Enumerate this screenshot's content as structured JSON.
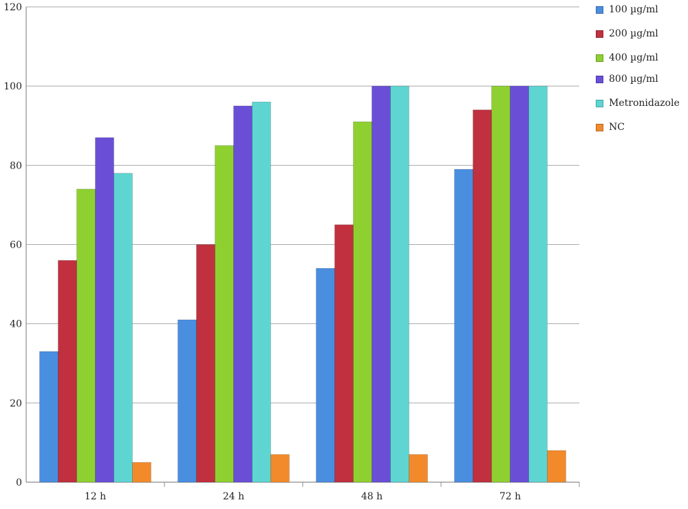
{
  "chart_data": {
    "type": "bar",
    "title": "",
    "xlabel": "",
    "ylabel": "",
    "categories": [
      "12 h",
      "24 h",
      "48 h",
      "72 h"
    ],
    "ylim": [
      0,
      120
    ],
    "yticks": [
      0,
      20,
      40,
      60,
      80,
      100,
      120
    ],
    "grid": true,
    "legend_position": "right",
    "series": [
      {
        "name": "100 µg/ml",
        "color": "#4a8ee0",
        "values": [
          33,
          41,
          54,
          79
        ]
      },
      {
        "name": "200 µg/ml",
        "color": "#c0303f",
        "values": [
          56,
          60,
          65,
          94
        ]
      },
      {
        "name": "400 µg/ml",
        "color": "#8fd031",
        "values": [
          74,
          85,
          91,
          100
        ]
      },
      {
        "name": "800 µg/ml",
        "color": "#6a4fd6",
        "values": [
          87,
          95,
          100,
          100
        ]
      },
      {
        "name": "Metronidazole",
        "color": "#5fd5d2",
        "values": [
          78,
          96,
          100,
          100
        ]
      },
      {
        "name": "NC",
        "color": "#f28a2c",
        "values": [
          5,
          7,
          7,
          8
        ]
      }
    ]
  }
}
